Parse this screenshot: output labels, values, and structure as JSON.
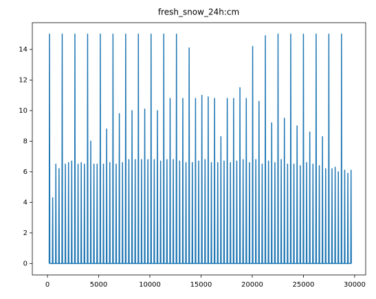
{
  "chart_data": {
    "type": "line",
    "title": "fresh_snow_24h:cm",
    "color": "#1f77b4",
    "xlim": [
      -1480,
      31080
    ],
    "ylim": [
      -0.75,
      15.75
    ],
    "xticks": [
      0,
      5000,
      10000,
      15000,
      20000,
      25000,
      30000
    ],
    "yticks": [
      0,
      2,
      4,
      6,
      8,
      10,
      12,
      14
    ],
    "x": [
      170,
      200,
      230,
      480,
      510,
      540,
      790,
      820,
      850,
      1100,
      1130,
      1160,
      1410,
      1440,
      1470,
      1720,
      1750,
      1780,
      2030,
      2060,
      2090,
      2340,
      2370,
      2400,
      2650,
      2680,
      2710,
      2960,
      2990,
      3020,
      3270,
      3300,
      3330,
      3580,
      3610,
      3640,
      3890,
      3920,
      3950,
      4200,
      4230,
      4260,
      4510,
      4540,
      4570,
      4820,
      4850,
      4880,
      5130,
      5160,
      5190,
      5440,
      5470,
      5500,
      5750,
      5780,
      5810,
      6060,
      6090,
      6120,
      6370,
      6400,
      6430,
      6680,
      6710,
      6740,
      6990,
      7020,
      7050,
      7300,
      7330,
      7360,
      7610,
      7640,
      7670,
      7920,
      7950,
      7980,
      8230,
      8260,
      8290,
      8540,
      8570,
      8600,
      8850,
      8880,
      8910,
      9160,
      9190,
      9220,
      9470,
      9500,
      9530,
      9780,
      9810,
      9840,
      10090,
      10120,
      10150,
      10400,
      10430,
      10460,
      10710,
      10740,
      10770,
      11020,
      11050,
      11080,
      11330,
      11360,
      11390,
      11640,
      11670,
      11700,
      11950,
      11980,
      12010,
      12260,
      12290,
      12320,
      12570,
      12600,
      12630,
      12880,
      12910,
      12940,
      13190,
      13220,
      13250,
      13500,
      13530,
      13560,
      13810,
      13840,
      13870,
      14120,
      14150,
      14180,
      14430,
      14460,
      14490,
      14740,
      14770,
      14800,
      15050,
      15080,
      15110,
      15360,
      15390,
      15420,
      15670,
      15700,
      15730,
      15980,
      16010,
      16040,
      16290,
      16320,
      16350,
      16600,
      16630,
      16660,
      16910,
      16940,
      16970,
      17220,
      17250,
      17280,
      17530,
      17560,
      17590,
      17840,
      17870,
      17900,
      18150,
      18180,
      18210,
      18460,
      18490,
      18520,
      18770,
      18800,
      18830,
      19080,
      19110,
      19140,
      19390,
      19420,
      19450,
      19700,
      19730,
      19760,
      20010,
      20040,
      20070,
      20320,
      20350,
      20380,
      20630,
      20660,
      20690,
      20940,
      20970,
      21000,
      21250,
      21280,
      21310,
      21560,
      21590,
      21620,
      21870,
      21900,
      21930,
      22180,
      22210,
      22240,
      22490,
      22520,
      22550,
      22800,
      22830,
      22860,
      23110,
      23140,
      23170,
      23420,
      23450,
      23480,
      23730,
      23760,
      23790,
      24040,
      24070,
      24100,
      24350,
      24380,
      24410,
      24660,
      24690,
      24720,
      24970,
      25000,
      25030,
      25280,
      25310,
      25340,
      25590,
      25620,
      25650,
      25900,
      25930,
      25960,
      26210,
      26240,
      26270,
      26520,
      26550,
      26580,
      26830,
      26860,
      26890,
      27140,
      27170,
      27200,
      27450,
      27480,
      27510,
      27760,
      27790,
      27820,
      28070,
      28100,
      28130,
      28380,
      28410,
      28440,
      28690,
      28720,
      28750,
      29000,
      29030,
      29060,
      29310,
      29340,
      29370,
      29620,
      29650,
      29680
    ],
    "values": [
      0,
      15,
      0,
      0,
      4.3,
      0,
      0,
      6.5,
      0,
      0,
      6.2,
      0,
      0,
      15,
      0,
      0,
      6.5,
      0,
      0,
      6.6,
      0,
      0,
      6.7,
      0,
      0,
      15,
      0,
      0,
      6.5,
      0,
      0,
      6.6,
      0,
      0,
      6.5,
      0,
      0,
      15,
      0,
      0,
      8.0,
      0,
      0,
      6.5,
      0,
      0,
      6.5,
      0,
      0,
      15,
      0,
      0,
      6.5,
      0,
      0,
      8.8,
      0,
      0,
      6.6,
      0,
      0,
      15,
      0,
      0,
      6.5,
      0,
      0,
      9.8,
      0,
      0,
      6.6,
      0,
      0,
      15,
      0,
      0,
      6.8,
      0,
      0,
      10.0,
      0,
      0,
      6.8,
      0,
      0,
      15,
      0,
      0,
      6.8,
      0,
      0,
      10.1,
      0,
      0,
      6.8,
      0,
      0,
      15,
      0,
      0,
      6.8,
      0,
      0,
      10.0,
      0,
      0,
      6.7,
      0,
      0,
      15,
      0,
      0,
      6.8,
      0,
      0,
      10.8,
      0,
      0,
      6.8,
      0,
      0,
      15,
      0,
      0,
      6.7,
      0,
      0,
      10.8,
      0,
      0,
      6.6,
      0,
      0,
      14.1,
      0,
      0,
      6.6,
      0,
      0,
      10.8,
      0,
      0,
      6.7,
      0,
      0,
      11,
      0,
      0,
      6.8,
      0,
      0,
      10.9,
      0,
      0,
      6.6,
      0,
      0,
      10.8,
      0,
      0,
      6.6,
      0,
      0,
      8.3,
      0,
      0,
      6.7,
      0,
      0,
      10.8,
      0,
      0,
      6.6,
      0,
      0,
      10.8,
      0,
      0,
      6.7,
      0,
      0,
      11.5,
      0,
      0,
      6.8,
      0,
      0,
      10.8,
      0,
      0,
      6.6,
      0,
      0,
      14.2,
      0,
      0,
      6.8,
      0,
      0,
      10.6,
      0,
      0,
      6.5,
      0,
      0,
      14.9,
      0,
      0,
      6.7,
      0,
      0,
      9.2,
      0,
      0,
      6.6,
      0,
      0,
      15,
      0,
      0,
      6.8,
      0,
      0,
      9.5,
      0,
      0,
      6.5,
      0,
      0,
      15,
      0,
      0,
      6.5,
      0,
      0,
      9.0,
      0,
      0,
      6.4,
      0,
      0,
      15,
      0,
      0,
      6.6,
      0,
      0,
      8.6,
      0,
      0,
      6.5,
      0,
      0,
      15,
      0,
      0,
      6.4,
      0,
      0,
      8.3,
      0,
      0,
      6.2,
      0,
      0,
      15,
      0,
      0,
      6.2,
      0,
      0,
      6.3,
      0,
      0,
      6.0,
      0,
      0,
      15,
      0,
      0,
      6.1,
      0,
      0,
      5.9,
      0,
      0,
      6.1,
      0
    ]
  }
}
